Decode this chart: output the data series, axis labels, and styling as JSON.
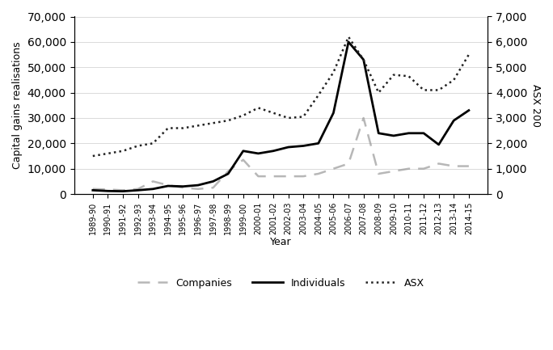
{
  "years": [
    "1989-90",
    "1990-91",
    "1991-92",
    "1992-93",
    "1993-94",
    "1994-95",
    "1995-96",
    "1996-97",
    "1997-98",
    "1998-99",
    "1999-00",
    "2000-01",
    "2001-02",
    "2002-03",
    "2003-04",
    "2004-05",
    "2005-06",
    "2006-07",
    "2007-08",
    "2008-09",
    "2009-10",
    "2010-11",
    "2011-12",
    "2012-13",
    "2013-14",
    "2014-15"
  ],
  "individuals": [
    1500,
    1200,
    1100,
    1500,
    2000,
    3200,
    3000,
    3500,
    5000,
    8000,
    17000,
    16000,
    17000,
    18500,
    19000,
    20000,
    32000,
    60000,
    53000,
    24000,
    23000,
    24000,
    24000,
    19500,
    29000,
    33000
  ],
  "companies": [
    2000,
    1800,
    1500,
    2000,
    5000,
    3500,
    2500,
    2000,
    2500,
    9000,
    13500,
    7000,
    7000,
    7000,
    7000,
    8000,
    10000,
    12000,
    30000,
    8000,
    9000,
    10000,
    10000,
    12000,
    11000,
    11000
  ],
  "asx": [
    1500,
    1600,
    1700,
    1900,
    2000,
    2600,
    2600,
    2700,
    2800,
    2900,
    3100,
    3400,
    3200,
    3000,
    3050,
    3900,
    4800,
    6200,
    5300,
    4000,
    4700,
    4650,
    4100,
    4100,
    4500,
    5500
  ],
  "ylabel_left": "Capital gains realisations",
  "ylabel_right": "ASX 200",
  "xlabel": "Year",
  "ylim_left": [
    0,
    70000
  ],
  "ylim_right": [
    0,
    7000
  ],
  "yticks_left": [
    0,
    10000,
    20000,
    30000,
    40000,
    50000,
    60000,
    70000
  ],
  "yticks_right": [
    0,
    1000,
    2000,
    3000,
    4000,
    5000,
    6000,
    7000
  ],
  "individuals_color": "#000000",
  "companies_color": "#999999",
  "asx_color": "#222222",
  "background_color": "#ffffff",
  "grid_color": "#cccccc"
}
